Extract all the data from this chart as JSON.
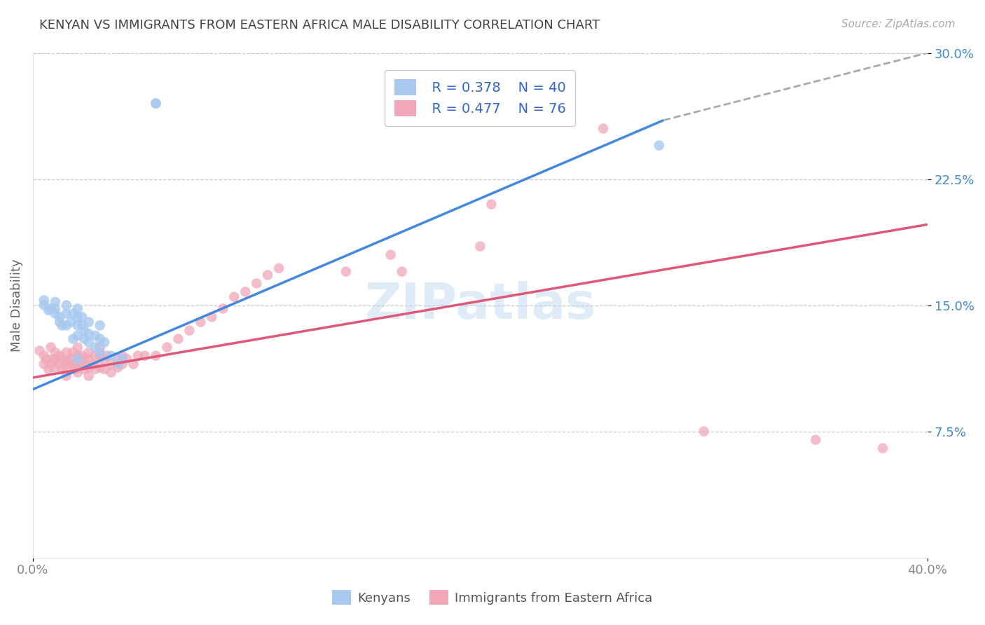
{
  "title": "KENYAN VS IMMIGRANTS FROM EASTERN AFRICA MALE DISABILITY CORRELATION CHART",
  "source_text": "Source: ZipAtlas.com",
  "ylabel": "Male Disability",
  "xmin": 0.0,
  "xmax": 0.4,
  "ymin": 0.0,
  "ymax": 0.3,
  "ytick_positions": [
    0.075,
    0.15,
    0.225,
    0.3
  ],
  "ytick_labels": [
    "7.5%",
    "15.0%",
    "22.5%",
    "30.0%"
  ],
  "xtick_positions": [
    0.0,
    0.4
  ],
  "xtick_labels": [
    "0.0%",
    "40.0%"
  ],
  "watermark": "ZIPatlas",
  "color_kenyan": "#a8c8f0",
  "color_immigrant": "#f0a8b8",
  "color_kenyan_line": "#4488dd",
  "color_immigrant_line": "#e05878",
  "color_dashed": "#aaaaaa",
  "kenyan_scatter_x": [
    0.005,
    0.005,
    0.007,
    0.008,
    0.01,
    0.01,
    0.01,
    0.012,
    0.012,
    0.013,
    0.015,
    0.015,
    0.015,
    0.017,
    0.018,
    0.018,
    0.02,
    0.02,
    0.02,
    0.02,
    0.02,
    0.022,
    0.022,
    0.023,
    0.023,
    0.025,
    0.025,
    0.025,
    0.028,
    0.028,
    0.03,
    0.03,
    0.03,
    0.032,
    0.035,
    0.038,
    0.04,
    0.055,
    0.055,
    0.28
  ],
  "kenyan_scatter_y": [
    0.153,
    0.15,
    0.147,
    0.148,
    0.152,
    0.148,
    0.145,
    0.143,
    0.14,
    0.138,
    0.15,
    0.145,
    0.138,
    0.14,
    0.145,
    0.13,
    0.148,
    0.143,
    0.138,
    0.132,
    0.118,
    0.143,
    0.138,
    0.135,
    0.13,
    0.14,
    0.133,
    0.128,
    0.132,
    0.125,
    0.138,
    0.13,
    0.122,
    0.128,
    0.12,
    0.115,
    0.118,
    0.27,
    0.27,
    0.245
  ],
  "immigrant_scatter_x": [
    0.003,
    0.005,
    0.005,
    0.006,
    0.007,
    0.008,
    0.008,
    0.009,
    0.01,
    0.01,
    0.01,
    0.012,
    0.012,
    0.013,
    0.013,
    0.015,
    0.015,
    0.015,
    0.015,
    0.016,
    0.017,
    0.018,
    0.018,
    0.019,
    0.02,
    0.02,
    0.02,
    0.02,
    0.022,
    0.022,
    0.023,
    0.023,
    0.025,
    0.025,
    0.025,
    0.025,
    0.027,
    0.028,
    0.028,
    0.03,
    0.03,
    0.03,
    0.032,
    0.032,
    0.033,
    0.035,
    0.035,
    0.038,
    0.038,
    0.04,
    0.04,
    0.042,
    0.045,
    0.047,
    0.05,
    0.055,
    0.06,
    0.065,
    0.07,
    0.075,
    0.08,
    0.085,
    0.09,
    0.095,
    0.1,
    0.105,
    0.11,
    0.14,
    0.16,
    0.165,
    0.2,
    0.205,
    0.255,
    0.3,
    0.35,
    0.38
  ],
  "immigrant_scatter_y": [
    0.123,
    0.12,
    0.115,
    0.118,
    0.112,
    0.125,
    0.115,
    0.118,
    0.122,
    0.118,
    0.113,
    0.12,
    0.115,
    0.118,
    0.112,
    0.122,
    0.117,
    0.113,
    0.108,
    0.115,
    0.118,
    0.122,
    0.115,
    0.112,
    0.125,
    0.12,
    0.115,
    0.11,
    0.12,
    0.115,
    0.118,
    0.112,
    0.122,
    0.118,
    0.113,
    0.108,
    0.115,
    0.12,
    0.112,
    0.125,
    0.12,
    0.113,
    0.118,
    0.112,
    0.12,
    0.115,
    0.11,
    0.118,
    0.113,
    0.12,
    0.115,
    0.118,
    0.115,
    0.12,
    0.12,
    0.12,
    0.125,
    0.13,
    0.135,
    0.14,
    0.143,
    0.148,
    0.155,
    0.158,
    0.163,
    0.168,
    0.172,
    0.17,
    0.18,
    0.17,
    0.185,
    0.21,
    0.255,
    0.075,
    0.07,
    0.065
  ],
  "blue_line_x": [
    0.0,
    0.282
  ],
  "blue_line_y": [
    0.1,
    0.26
  ],
  "dash_line_x": [
    0.282,
    0.4
  ],
  "dash_line_y": [
    0.26,
    0.3
  ],
  "pink_line_x": [
    0.0,
    0.4
  ],
  "pink_line_y": [
    0.107,
    0.198
  ],
  "background_color": "#ffffff",
  "grid_color": "#e8e8e8",
  "title_color": "#444444",
  "axis_label_color": "#666666",
  "tick_label_color_y": "#4488cc",
  "tick_label_color_x": "#888888"
}
